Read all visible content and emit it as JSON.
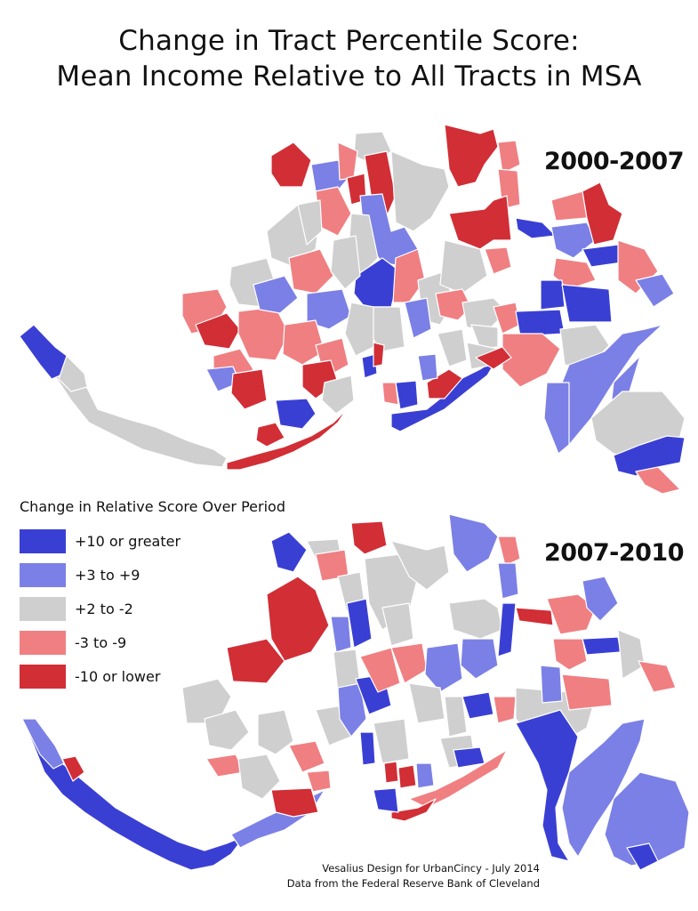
{
  "title_line1": "Change in Tract Percentile Score:",
  "title_line2": "Mean Income Relative to All Tracts in MSA",
  "maps": [
    {
      "period": "2000-2007"
    },
    {
      "period": "2007-2010"
    }
  ],
  "legend": {
    "title": "Change in Relative Score Over Period",
    "items": [
      {
        "label": "+10 or greater",
        "color": "#3a3fd4"
      },
      {
        "label": "+3 to +9",
        "color": "#7b80e6"
      },
      {
        "label": "+2 to -2",
        "color": "#cfcfcf"
      },
      {
        "label": "-3 to -9",
        "color": "#f07f82"
      },
      {
        "label": "-10 or lower",
        "color": "#d12e36"
      }
    ]
  },
  "credits": {
    "line1": "Vesalius Design for UrbanCincy - July 2014",
    "line2": "Data from the Federal Reserve Bank of Cleveland"
  }
}
